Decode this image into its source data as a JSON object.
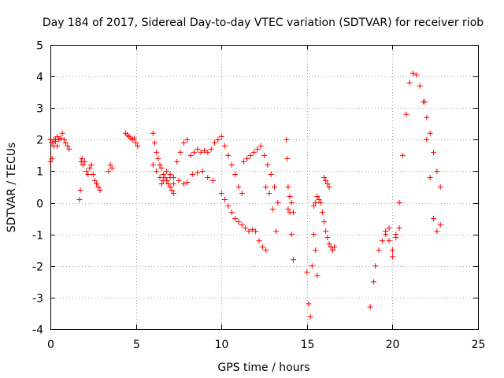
{
  "chart_data": {
    "type": "scatter",
    "title": "Day 184 of 2017, Sidereal Day-to-day VTEC variation (SDTVAR) for receiver riob",
    "xlabel": "GPS time / hours",
    "ylabel": "SDTVAR / TECUs",
    "xlim": [
      0,
      25
    ],
    "ylim": [
      -4,
      5
    ],
    "xticks": [
      0,
      5,
      10,
      15,
      20,
      25
    ],
    "yticks": [
      -4,
      -3,
      -2,
      -1,
      0,
      1,
      2,
      3,
      4,
      5
    ],
    "grid": true,
    "marker": "+",
    "color": "#ff0000",
    "series": [
      {
        "name": "s1",
        "x": [
          0.0,
          0.1,
          0.2,
          0.3,
          0.4,
          0.5,
          0.6,
          0.7,
          0.8,
          0.9,
          1.0,
          1.1
        ],
        "y": [
          1.3,
          1.4,
          1.8,
          2.0,
          2.1,
          2.0,
          2.05,
          2.2,
          2.0,
          1.9,
          1.8,
          1.7
        ]
      },
      {
        "name": "s2",
        "x": [
          0.0,
          0.1,
          0.2,
          0.3,
          0.4,
          0.5
        ],
        "y": [
          2.0,
          1.9,
          2.0,
          1.95,
          1.8,
          2.0
        ]
      },
      {
        "name": "s3",
        "x": [
          1.7,
          1.75,
          1.8,
          1.85,
          1.9,
          2.0,
          2.1,
          2.2,
          2.3,
          2.4,
          2.5,
          2.6,
          2.7,
          2.8,
          2.9
        ],
        "y": [
          0.1,
          0.4,
          1.3,
          1.4,
          1.2,
          1.3,
          1.0,
          0.9,
          1.1,
          1.2,
          0.9,
          0.7,
          0.6,
          0.5,
          0.4
        ]
      },
      {
        "name": "s4",
        "x": [
          3.4,
          3.5,
          3.6
        ],
        "y": [
          1.0,
          1.2,
          1.1
        ]
      },
      {
        "name": "s5",
        "x": [
          4.4,
          4.5,
          4.6,
          4.7,
          4.8,
          4.9,
          5.0,
          5.1
        ],
        "y": [
          2.2,
          2.15,
          2.1,
          2.05,
          2.0,
          2.05,
          1.9,
          1.8
        ]
      },
      {
        "name": "s6",
        "x": [
          6.0,
          6.1,
          6.2,
          6.3,
          6.4,
          6.5,
          6.6,
          6.7,
          6.8,
          6.9,
          7.0,
          7.1,
          7.2
        ],
        "y": [
          2.2,
          1.9,
          1.6,
          1.4,
          1.2,
          1.1,
          0.9,
          0.8,
          0.7,
          0.6,
          0.5,
          0.4,
          0.3
        ]
      },
      {
        "name": "s7",
        "x": [
          6.0,
          6.2,
          6.4,
          6.6,
          6.8,
          7.0,
          7.2,
          7.4,
          7.6,
          7.8,
          8.0
        ],
        "y": [
          1.2,
          1.0,
          0.8,
          0.7,
          1.0,
          0.9,
          0.8,
          1.3,
          1.6,
          1.9,
          2.0
        ]
      },
      {
        "name": "s8",
        "x": [
          6.5,
          6.8,
          7.0,
          7.2,
          7.5,
          7.8,
          8.0,
          8.3,
          8.6,
          8.9,
          9.2,
          9.5
        ],
        "y": [
          0.6,
          0.7,
          0.8,
          0.6,
          0.7,
          0.6,
          0.65,
          0.9,
          0.95,
          1.0,
          0.8,
          0.7
        ]
      },
      {
        "name": "s9",
        "x": [
          8.2,
          8.4,
          8.6,
          8.8,
          9.0,
          9.2,
          9.4,
          9.6,
          9.8,
          10.0,
          10.2,
          10.4,
          10.6,
          10.8,
          11.0,
          11.2
        ],
        "y": [
          1.5,
          1.6,
          1.7,
          1.6,
          1.65,
          1.6,
          1.7,
          1.9,
          2.0,
          2.1,
          1.8,
          1.5,
          1.2,
          0.9,
          0.5,
          0.3
        ]
      },
      {
        "name": "s10",
        "x": [
          10.0,
          10.2,
          10.4,
          10.6,
          10.8,
          11.0,
          11.2,
          11.4,
          11.6,
          11.8,
          12.0,
          12.2,
          12.4,
          12.6
        ],
        "y": [
          0.3,
          0.1,
          -0.1,
          -0.3,
          -0.5,
          -0.6,
          -0.7,
          -0.8,
          -0.9,
          -0.85,
          -0.9,
          -1.2,
          -1.4,
          -1.5
        ]
      },
      {
        "name": "s11",
        "x": [
          11.3,
          11.5,
          11.7,
          11.9,
          12.1,
          12.3,
          12.5,
          12.7,
          12.9,
          13.1,
          13.3
        ],
        "y": [
          1.3,
          1.4,
          1.5,
          1.6,
          1.7,
          1.8,
          1.5,
          1.2,
          0.9,
          0.5,
          0.0
        ]
      },
      {
        "name": "s12",
        "x": [
          12.6,
          12.8,
          13.0,
          13.2
        ],
        "y": [
          0.5,
          0.3,
          -0.2,
          -0.9
        ]
      },
      {
        "name": "s13",
        "x": [
          13.8,
          13.85,
          13.9,
          14.0,
          14.1,
          14.2
        ],
        "y": [
          2.0,
          1.4,
          -0.2,
          -0.3,
          -1.0,
          -1.8
        ]
      },
      {
        "name": "s14",
        "x": [
          13.9,
          14.0,
          14.1,
          14.2
        ],
        "y": [
          0.5,
          0.2,
          0.0,
          -0.3
        ]
      },
      {
        "name": "s15",
        "x": [
          15.0,
          15.1,
          15.2,
          15.3,
          15.4,
          15.5,
          15.6
        ],
        "y": [
          -2.2,
          -3.2,
          -3.6,
          -2.0,
          -1.0,
          -1.5,
          -2.3
        ]
      },
      {
        "name": "s16",
        "x": [
          15.4,
          15.5,
          15.6,
          15.7,
          15.8,
          15.9,
          16.0,
          16.1,
          16.2,
          16.3,
          16.4,
          16.5,
          16.6
        ],
        "y": [
          -0.1,
          0.0,
          0.2,
          0.1,
          0.0,
          -0.3,
          -0.6,
          -0.9,
          -1.1,
          -1.3,
          -1.4,
          -1.5,
          -1.4
        ]
      },
      {
        "name": "s17",
        "x": [
          16.0,
          16.1,
          16.2,
          16.3
        ],
        "y": [
          0.8,
          0.7,
          0.6,
          0.5
        ]
      },
      {
        "name": "s18",
        "x": [
          18.7
        ],
        "y": [
          -3.3
        ]
      },
      {
        "name": "s19",
        "x": [
          18.9,
          19.0,
          19.2,
          19.4,
          19.6,
          19.8,
          20.0,
          20.2,
          20.4,
          20.6,
          20.8,
          21.0,
          21.2,
          21.4,
          21.6,
          21.8,
          22.0,
          22.2,
          22.4,
          22.6,
          22.8
        ],
        "y": [
          -2.5,
          -2.0,
          -1.5,
          -1.2,
          -0.9,
          -0.8,
          -1.5,
          -1.0,
          0.0,
          1.5,
          2.8,
          3.8,
          4.1,
          4.05,
          3.7,
          3.2,
          2.7,
          2.2,
          1.6,
          1.0,
          0.5
        ]
      },
      {
        "name": "s20",
        "x": [
          19.6,
          19.8,
          20.0,
          20.2,
          20.4
        ],
        "y": [
          -1.0,
          -1.2,
          -1.7,
          -1.1,
          -0.8
        ]
      },
      {
        "name": "s21",
        "x": [
          21.9,
          22.0,
          22.2,
          22.4,
          22.6,
          22.8
        ],
        "y": [
          3.2,
          2.0,
          0.8,
          -0.5,
          -0.9,
          -0.7
        ]
      }
    ]
  }
}
